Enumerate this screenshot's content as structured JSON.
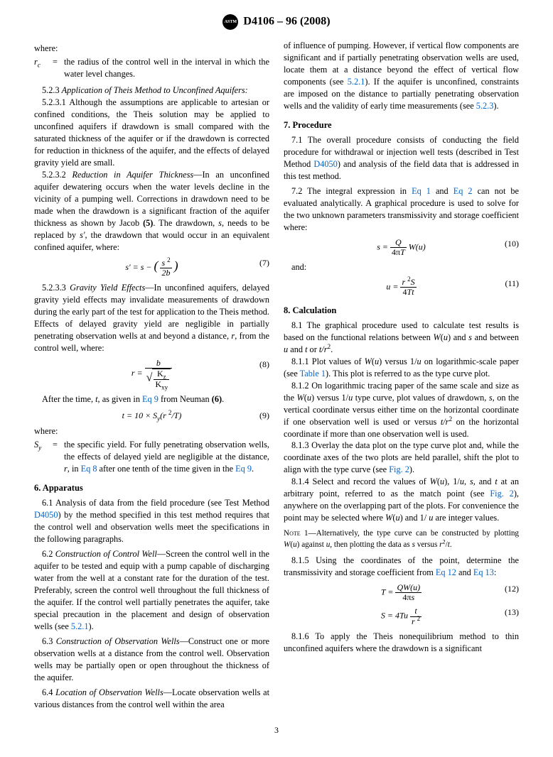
{
  "header": {
    "designation": "D4106 – 96 (2008)"
  },
  "left_col": {
    "where_intro": "where:",
    "rc_sym": "r",
    "rc_sub": "c",
    "rc_def": "the radius of the control well in the interval in which the water level changes.",
    "p523_num": "5.2.3",
    "p523_title": "Application of Theis Method to Unconfined Aquifers:",
    "p5231": "5.2.3.1 Although the assumptions are applicable to artesian or confined conditions, the Theis solution may be applied to unconfined aquifers if drawdown is small compared with the saturated thickness of the aquifer or if the drawdown is corrected for reduction in thickness of the aquifer, and the effects of delayed gravity yield are small.",
    "p5232_num": "5.2.3.2",
    "p5232_title": "Reduction in Aquifer Thickness",
    "p5232_body1": "—In an unconfined aquifer dewatering occurs when the water levels decline in the vicinity of a pumping well. Corrections in drawdown need to be made when the drawdown is a significant fraction of the aquifer thickness as shown by Jacob ",
    "p5232_ref": "(5)",
    "p5232_body2": ". The drawdown, ",
    "p5232_body3": ", needs to be replaced by ",
    "p5232_body4": ", the drawdown that would occur in an equivalent confined aquifer, where:",
    "eq7_num": "(7)",
    "p5233_num": "5.2.3.3",
    "p5233_title": "Gravity Yield Effects",
    "p5233_body": "—In unconfined aquifers, delayed gravity yield effects may invalidate measurements of drawdown during the early part of the test for application to the Theis method. Effects of delayed gravity yield are negligible in partially penetrating observation wells at and beyond a distance, ",
    "p5233_body2": ", from the control well, where:",
    "eq8_num": "(8)",
    "after_time": "After the time, ",
    "after_time2": ", as given in ",
    "eq9_link": "Eq 9",
    "after_time3": " from Neuman ",
    "neuman_ref": "(6)",
    "eq9_num": "(9)",
    "where2": "where:",
    "sy_sym": "S",
    "sy_sub": "y",
    "sy_def1": "the specific yield. For fully penetrating observation wells, the effects of delayed yield are negligible at the distance, ",
    "sy_def2": ", in ",
    "eq8_link": "Eq 8",
    "sy_def3": " after one tenth of the time given in the ",
    "eq9_link2": "Eq 9",
    "h6": "6. Apparatus",
    "p61": "6.1 Analysis of data from the field procedure (see Test Method ",
    "d4050_link": "D4050",
    "p61b": ") by the method specified in this test method requires that the control well and observation wells meet the specifications in the following paragraphs.",
    "p62_num": "6.2",
    "p62_title": "Construction of Control Well",
    "p62_body": "—Screen the control well in the aquifer to be tested and equip with a pump capable of discharging water from the well at a constant rate for the duration of the test. Preferably, screen the control well throughout the full thickness of the aquifer. If the control well partially penetrates the aquifer, take special precaution in the placement and design of observation wells (see ",
    "p521_link": "5.2.1",
    "p62_body2": ").",
    "p63_num": "6.3",
    "p63_title": "Construction of Observation Wells",
    "p63_body": "—Construct one or more observation wells at a distance from the control well. Observation wells may be partially open or open throughout the thickness of the aquifer.",
    "p64_num": "6.4",
    "p64_title": "Location of Observation Wells",
    "p64_body": "—Locate observation wells at various distances from the control well within the area"
  },
  "right_col": {
    "p_cont": "of influence of pumping. However, if vertical flow components are significant and if partially penetrating observation wells are used, locate them at a distance beyond the effect of vertical flow components (see ",
    "link_521": "5.2.1",
    "p_cont2": "). If the aquifer is unconfined, constraints are imposed on the distance to partially penetrating observation wells and the validity of early time measurements (see ",
    "link_523": "5.2.3",
    "p_cont3": ").",
    "h7": "7. Procedure",
    "p71": "7.1 The overall procedure consists of conducting the field procedure for withdrawal or injection well tests (described in Test Method ",
    "d4050_link2": "D4050",
    "p71b": ") and analysis of the field data that is addressed in this test method.",
    "p72": "7.2 The integral expression in ",
    "eq1_link": "Eq 1",
    "p72b": " and ",
    "eq2_link": "Eq 2",
    "p72c": " can not be evaluated analytically. A graphical procedure is used to solve for the two unknown parameters transmissivity and storage coefficient where:",
    "eq10_num": "(10)",
    "and_label": "and:",
    "eq11_num": "(11)",
    "h8": "8. Calculation",
    "p81": "8.1 The graphical procedure used to calculate test results is based on the functional relations between ",
    "p81b": " and ",
    "p81c": " and between ",
    "p81d": " and ",
    "p81e": " or ",
    "p811": "8.1.1 Plot values of ",
    "p811b": " versus 1/",
    "p811c": " on logarithmic-scale paper (see ",
    "table1_link": "Table 1",
    "p811d": "). This plot is referred to as the type curve plot.",
    "p812": "8.1.2 On logarithmic tracing paper of the same scale and size as the ",
    "p812b": " versus 1/",
    "p812c": " type curve, plot values of drawdown, ",
    "p812d": ", on the vertical coordinate versus either time on the horizontal coordinate if one observation well is used or versus ",
    "p812e": " on the horizontal coordinate if more than one observation well is used.",
    "p813": "8.1.3 Overlay the data plot on the type curve plot and, while the coordinate axes of the two plots are held parallel, shift the plot to align with the type curve (see ",
    "fig2_link": "Fig. 2",
    "p813b": ").",
    "p814": "8.1.4 Select and record the values of ",
    "p814b": ", 1/",
    "p814c": ", ",
    "p814d": ", and ",
    "p814e": " at an arbitrary point, referred to as the match point (see ",
    "fig2_link2": "Fig. 2",
    "p814f": "), anywhere on the overlapping part of the plots. For convenience the point may be selected where ",
    "p814g": " and 1/ ",
    "p814h": " are integer values.",
    "note1_label": "Note",
    "note1_num": "1—",
    "note1_body": "Alternatively, the type curve can be constructed by plotting ",
    "note1_body2": " against ",
    "note1_body3": ", then plotting the data as ",
    "note1_body4": " versus ",
    "p815": "8.1.5 Using the coordinates of the point, determine the transmissivity and storage coefficient from ",
    "eq12_link": "Eq 12",
    "p815b": " and ",
    "eq13_link": "Eq 13",
    "p815c": ":",
    "eq12_num": "(12)",
    "eq13_num": "(13)",
    "p816": "8.1.6 To apply the Theis nonequilibrium method to thin unconfined aquifers where the drawdown is a significant"
  },
  "pagenum": "3"
}
